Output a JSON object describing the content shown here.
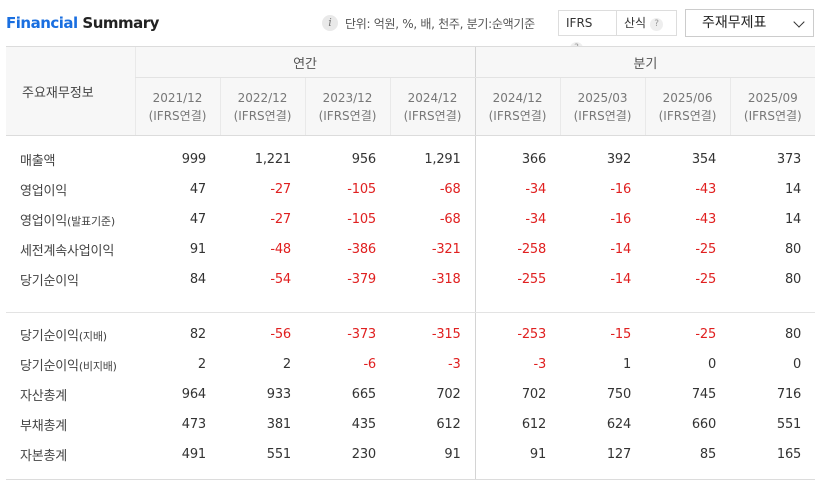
{
  "header": {
    "title_accent": "Financial",
    "title_rest": " Summary",
    "unit_text": "단위: 억원, %, 배, 천주, 분기:순액기준",
    "ifrs_label": "IFRS",
    "formula_label": "산식",
    "help_glyph": "?",
    "info_glyph": "i",
    "dropdown_value": "주재무제표"
  },
  "table": {
    "row_header": "주요재무정보",
    "groups": [
      "연간",
      "분기"
    ],
    "periods": [
      {
        "date": "2021/12",
        "basis": "(IFRS연결)"
      },
      {
        "date": "2022/12",
        "basis": "(IFRS연결)"
      },
      {
        "date": "2023/12",
        "basis": "(IFRS연결)"
      },
      {
        "date": "2024/12",
        "basis": "(IFRS연결)"
      },
      {
        "date": "2024/12",
        "basis": "(IFRS연결)"
      },
      {
        "date": "2025/03",
        "basis": "(IFRS연결)"
      },
      {
        "date": "2025/06",
        "basis": "(IFRS연결)"
      },
      {
        "date": "2025/09",
        "basis": "(IFRS연결)"
      }
    ],
    "rows": [
      {
        "label": "매출액",
        "values": [
          "999",
          "1,221",
          "956",
          "1,291",
          "366",
          "392",
          "354",
          "373"
        ]
      },
      {
        "label": "영업이익",
        "values": [
          "47",
          "-27",
          "-105",
          "-68",
          "-34",
          "-16",
          "-43",
          "14"
        ]
      },
      {
        "label": "영업이익",
        "sub": "(발표기준)",
        "values": [
          "47",
          "-27",
          "-105",
          "-68",
          "-34",
          "-16",
          "-43",
          "14"
        ]
      },
      {
        "label": "세전계속사업이익",
        "values": [
          "91",
          "-48",
          "-386",
          "-321",
          "-258",
          "-14",
          "-25",
          "80"
        ]
      },
      {
        "label": "당기순이익",
        "values": [
          "84",
          "-54",
          "-379",
          "-318",
          "-255",
          "-14",
          "-25",
          "80"
        ]
      },
      {
        "label": "당기순이익",
        "sub": "(지배)",
        "values": [
          "82",
          "-56",
          "-373",
          "-315",
          "-253",
          "-15",
          "-25",
          "80"
        ]
      },
      {
        "label": "당기순이익",
        "sub": "(비지배)",
        "values": [
          "2",
          "2",
          "-6",
          "-3",
          "-3",
          "1",
          "0",
          "0"
        ]
      },
      {
        "label": "자산총계",
        "values": [
          "964",
          "933",
          "665",
          "702",
          "702",
          "750",
          "745",
          "716"
        ]
      },
      {
        "label": "부채총계",
        "values": [
          "473",
          "381",
          "435",
          "612",
          "612",
          "624",
          "660",
          "551"
        ]
      },
      {
        "label": "자본총계",
        "values": [
          "491",
          "551",
          "230",
          "91",
          "91",
          "127",
          "85",
          "165"
        ]
      }
    ],
    "negative_color": "#e02020",
    "accent_color": "#1a6fe0"
  }
}
